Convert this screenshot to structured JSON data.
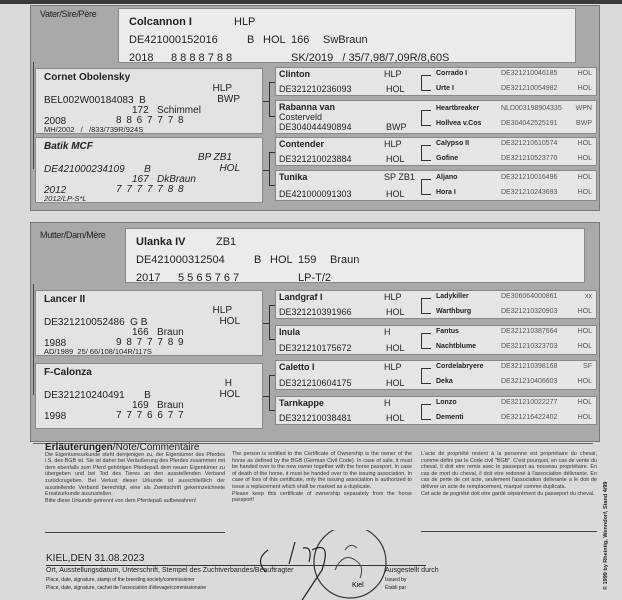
{
  "sire_section": {
    "label": "Vater/Sire/Père",
    "header": {
      "name": "Colcannon I",
      "quality": "HLP",
      "id": "DE421000152016",
      "sex": "B",
      "breed": "HOL",
      "height": "166",
      "color": "SwBraun",
      "year": "2018",
      "scores": "8 8 8 8 7 8 8",
      "test": "SK/2019   / 35/7,98/7,09R/8,60S"
    },
    "parents": [
      {
        "name": "Cornet Obolensky",
        "q1": "HLP",
        "q2": "BWP",
        "id": "BEL002W00184083  B",
        "hc": "172   Schimmel",
        "year": "2008",
        "scores": "8 8 6 7 7 7 8",
        "test": "MH/2002   /   /833/739R/924S",
        "italic": false
      },
      {
        "name": "Batik MCF",
        "q1": "BP   ZB1",
        "q2": "HOL",
        "id": "DE421000234109       B",
        "hc": "167   DkBraun",
        "year": "2012",
        "scores": "7 7 7 7 7 8 8",
        "test": "2012/LP-S*L",
        "italic": true
      }
    ],
    "grandparents": [
      {
        "name": "Clinton",
        "quality": "HLP",
        "id": "DE321210236093",
        "breed": "HOL",
        "ggs": [
          {
            "name": "Corrado I",
            "id": "DE321210046185",
            "breed": "HOL"
          },
          {
            "name": "Urte I",
            "id": "DE321210054982",
            "breed": "HOL"
          }
        ]
      },
      {
        "name": "Rabanna van",
        "sub": "Costerveld",
        "quality": "",
        "id": "DE304044490894",
        "breed": "BWP",
        "ggs": [
          {
            "name": "Heartbreaker",
            "id": "NLD003198904335",
            "breed": "WPN"
          },
          {
            "name": "Hollvea v.Cos",
            "id": "DE304042525191",
            "breed": "BWP"
          }
        ]
      },
      {
        "name": "Contender",
        "quality": "HLP",
        "id": "DE321210023884",
        "breed": "HOL",
        "ggs": [
          {
            "name": "Calypso II",
            "id": "DE321210610574",
            "breed": "HOL"
          },
          {
            "name": "Gofine",
            "id": "DE321210523770",
            "breed": "HOL"
          }
        ]
      },
      {
        "name": "Tunika",
        "quality": "SP  ZB1",
        "id": "DE421000091303",
        "breed": "HOL",
        "ggs": [
          {
            "name": "Aljano",
            "id": "DE321210016496",
            "breed": "HOL"
          },
          {
            "name": "Hora I",
            "id": "DE321210243693",
            "breed": "HOL"
          }
        ]
      }
    ]
  },
  "dam_section": {
    "label": "Mutter/Dam/Mère",
    "header": {
      "name": "Ulanka IV",
      "quality": "ZB1",
      "id": "DE421000312504",
      "sex": "B",
      "breed": "HOL",
      "height": "159",
      "color": "Braun",
      "year": "2017",
      "scores": "5 5 6 5 7 6 7",
      "test": "LP-T/2"
    },
    "parents": [
      {
        "name": "Lancer II",
        "q1": "HLP",
        "q2": "HOL",
        "id": "DE321210052486  G B",
        "hc": "166   Braun",
        "year": "1988",
        "scores": "9 8 7 7 7 8 9",
        "test": "AD/1989  25/ 66/108/104R/117S",
        "italic": false
      },
      {
        "name": "F-Calonza",
        "q1": "H",
        "q2": "HOL",
        "id": "DE321210240491       B",
        "hc": "169   Braun",
        "year": "1998",
        "scores": "7 7 7 6 6 7 7",
        "test": "",
        "italic": false
      }
    ],
    "grandparents": [
      {
        "name": "Landgraf I",
        "quality": "HLP",
        "id": "DE321210391966",
        "breed": "HOL",
        "ggs": [
          {
            "name": "Ladykiller",
            "id": "DE306064000861",
            "breed": "xx"
          },
          {
            "name": "Warthburg",
            "id": "DE321210320903",
            "breed": "HOL"
          }
        ]
      },
      {
        "name": "Inula",
        "quality": "H",
        "id": "DE321210175672",
        "breed": "HOL",
        "ggs": [
          {
            "name": "Fantus",
            "id": "DE321210387664",
            "breed": "HOL"
          },
          {
            "name": "Nachtblume",
            "id": "DE321210323703",
            "breed": "HOL"
          }
        ]
      },
      {
        "name": "Caletto I",
        "quality": "HLP",
        "id": "DE321210604175",
        "breed": "HOL",
        "ggs": [
          {
            "name": "Cordelabryere",
            "id": "DE321210398168",
            "breed": "SF"
          },
          {
            "name": "Deka",
            "id": "DE321210406603",
            "breed": "HOL"
          }
        ]
      },
      {
        "name": "Tarnkappe",
        "quality": "H",
        "id": "DE321210038481",
        "breed": "HOL",
        "ggs": [
          {
            "name": "Lonzo",
            "id": "DE321210022277",
            "breed": "HOL"
          },
          {
            "name": "Dementi",
            "id": "DE321216422402",
            "breed": "HOL"
          }
        ]
      }
    ]
  },
  "notes": {
    "heading_bold": "Erläuterungen",
    "heading_rest": "/Note/Commentaire",
    "de": "Die Eigentumsurkunde steht demjenigen zu, der Eigentümer des Pferdes i.S. des BGB ist. Sie ist daher bei Veräußerung des Pferdes zusammen mit dem ebenfalls zum Pferd gehörigen Pferdepaß dem neuen Eigentümer zu übergeben und bei Tod des Tieres an den ausstellenden Verband zurückzugeben. Bei Verlust dieser Urkunde ist ausschließlich der ausstellende Verband berechtigt, eine als Zweitschrift gekennzeichnete Ersatzurkunde auszustellen.",
    "de2": "Bitte diese Urkunde getrennt von dem Pferdepaß aufbewahren!",
    "en": "The person is entitled to the Certificate of Ownership is the owner of the horse as defined by the BGB (German Civil Code). In case of sale, it must be handed over to the new owner together with the horse passport. In case of death of the horse, it must be handed over to the issuing association. In case of loss of this certificate, only the issuing association is authorized to issue a replacement which shall be marked as a duplicate.",
    "en2": "Please keep this certificate of ownership separately from the horse passport!",
    "fr": "L'acte de propriété revient à la personne est propriétaire du cheval, comme défini par le Code civil \"BGB\". C'est pourquoi, en cas de vente du cheval, il doit etre remis avec le passeport au nouveau propriétaire. En cas de mort du cheval, il doit etre redonné à l'association délivrante. En cas de perte de cet acte, seulement l'association délivrante a le doit de délivrer un acte de remplacement, marqué comme duplicata.",
    "fr2": "Cet acte de pogriété doit etre gardé séparément du passeport du cheval."
  },
  "footer": {
    "place_date": "KIEL,DEN 31.08.2023",
    "line_de": "Ort, Ausstellungsdatum, Unterschrift, Stempel des Zuchtverbandes/Beauftragter",
    "line_en": "Place, date, signature, stamp of the breeding society/commissioner",
    "line_fr": "Place, date, signature, cachet de l'association d'élevage/commissionaire",
    "issued_de": "Ausgestellt durch",
    "issued_en": "Issued by",
    "issued_fr": "Établi par",
    "signature": "S. Haach",
    "stamp_text": "Kiel",
    "copyright": "© 1999 by Rheintig, Wenndorf, Stand 4/99"
  }
}
